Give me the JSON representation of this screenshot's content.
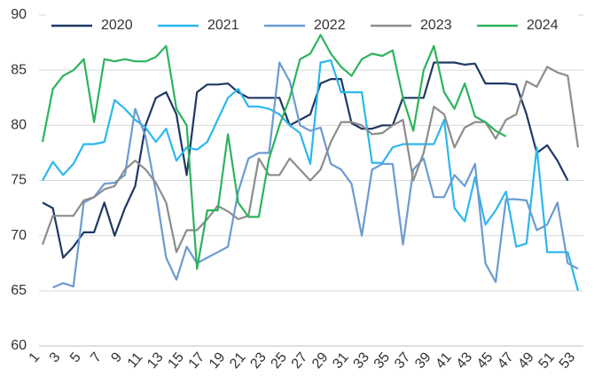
{
  "chart_data": {
    "type": "line",
    "categories": [
      1,
      null,
      3,
      null,
      5,
      null,
      7,
      null,
      9,
      null,
      11,
      null,
      13,
      null,
      15,
      null,
      17,
      null,
      19,
      null,
      21,
      null,
      23,
      null,
      25,
      null,
      27,
      null,
      29,
      null,
      31,
      null,
      33,
      null,
      35,
      null,
      37,
      null,
      39,
      null,
      41,
      null,
      43,
      null,
      45,
      null,
      47,
      null,
      49,
      null,
      51,
      null,
      53
    ],
    "series": [
      {
        "name": "2020",
        "color": "#1f3864",
        "values": [
          73,
          72.5,
          68,
          69,
          70.3,
          70.3,
          73,
          70,
          72.5,
          74.5,
          80,
          82.5,
          83,
          81,
          75.5,
          83,
          83.7,
          83.7,
          83.8,
          83,
          82.5,
          82.5,
          82.5,
          82.5,
          80,
          80.5,
          81,
          83.8,
          84.2,
          84.2,
          80.2,
          79.7,
          79.7,
          80,
          80,
          82.5,
          82.5,
          82.5,
          85.7,
          85.7,
          85.7,
          85.5,
          85.6,
          83.8,
          83.8,
          83.8,
          83.7,
          81,
          77.5,
          78.2,
          76.8,
          75,
          null
        ]
      },
      {
        "name": "2021",
        "color": "#2bb7ee",
        "values": [
          75,
          76.7,
          75.5,
          76.5,
          78.3,
          78.3,
          78.5,
          82.3,
          81.5,
          80.5,
          79.8,
          78.5,
          79.7,
          76.8,
          78,
          77.8,
          78.5,
          80.5,
          82.5,
          83.3,
          81.7,
          81.7,
          81.5,
          81,
          80,
          79.3,
          76.5,
          85.7,
          85.9,
          83,
          83,
          83,
          76.6,
          76.6,
          78,
          78.3,
          78.3,
          78.3,
          78.3,
          80.5,
          72.5,
          71.3,
          75.3,
          71,
          72.3,
          74,
          69,
          69.3,
          78,
          68.5,
          68.5,
          68.5,
          65
        ]
      },
      {
        "name": "2022",
        "color": "#6b9bd1",
        "values": [
          null,
          65.3,
          65.7,
          65.4,
          73,
          73.5,
          74.7,
          74.8,
          75.5,
          81.5,
          79,
          74,
          68,
          66,
          69,
          67.5,
          68,
          68.5,
          69,
          74,
          77,
          77.5,
          77.5,
          85.7,
          84,
          80,
          79.5,
          79.8,
          76.5,
          76,
          74.7,
          70,
          76,
          76.5,
          76.5,
          69.2,
          76,
          77,
          73.5,
          73.5,
          75.5,
          74.5,
          76.5,
          67.5,
          65.8,
          73.3,
          73.3,
          73.2,
          70.5,
          71,
          73,
          67.5,
          67
        ]
      },
      {
        "name": "2023",
        "color": "#8c8c8c",
        "values": [
          69.2,
          71.8,
          71.8,
          71.8,
          73.2,
          73.5,
          74.2,
          74.5,
          76,
          76.8,
          76,
          74.8,
          73,
          68.5,
          70.5,
          70.5,
          71.5,
          72.7,
          72.2,
          71.5,
          71.8,
          77,
          75.5,
          75.5,
          77,
          76,
          75,
          76,
          78.5,
          80.3,
          80.3,
          80,
          79.2,
          79.3,
          80,
          80.5,
          75,
          77.5,
          81.7,
          81,
          78,
          79.8,
          80.3,
          80.3,
          78.8,
          80.5,
          81,
          84,
          83.5,
          85.3,
          84.8,
          84.5,
          78
        ]
      },
      {
        "name": "2024",
        "color": "#2db35d",
        "values": [
          78.5,
          83.3,
          84.5,
          85,
          86,
          80.3,
          86,
          85.8,
          86,
          85.8,
          85.8,
          86.2,
          87.2,
          81.5,
          80,
          67,
          72.3,
          72.3,
          79.2,
          73,
          71.7,
          71.7,
          77,
          80,
          82.5,
          86,
          86.5,
          88.2,
          86.5,
          85.3,
          84.5,
          86,
          86.5,
          86.3,
          86.8,
          82.5,
          79.5,
          85,
          87.2,
          83,
          81.5,
          83.8,
          80.8,
          80.3,
          79.5,
          79,
          null,
          null,
          null,
          null,
          null,
          null,
          null
        ]
      }
    ],
    "ylim": [
      60,
      90
    ],
    "yticks": [
      60,
      65,
      70,
      75,
      80,
      85,
      90
    ],
    "grid": true
  }
}
